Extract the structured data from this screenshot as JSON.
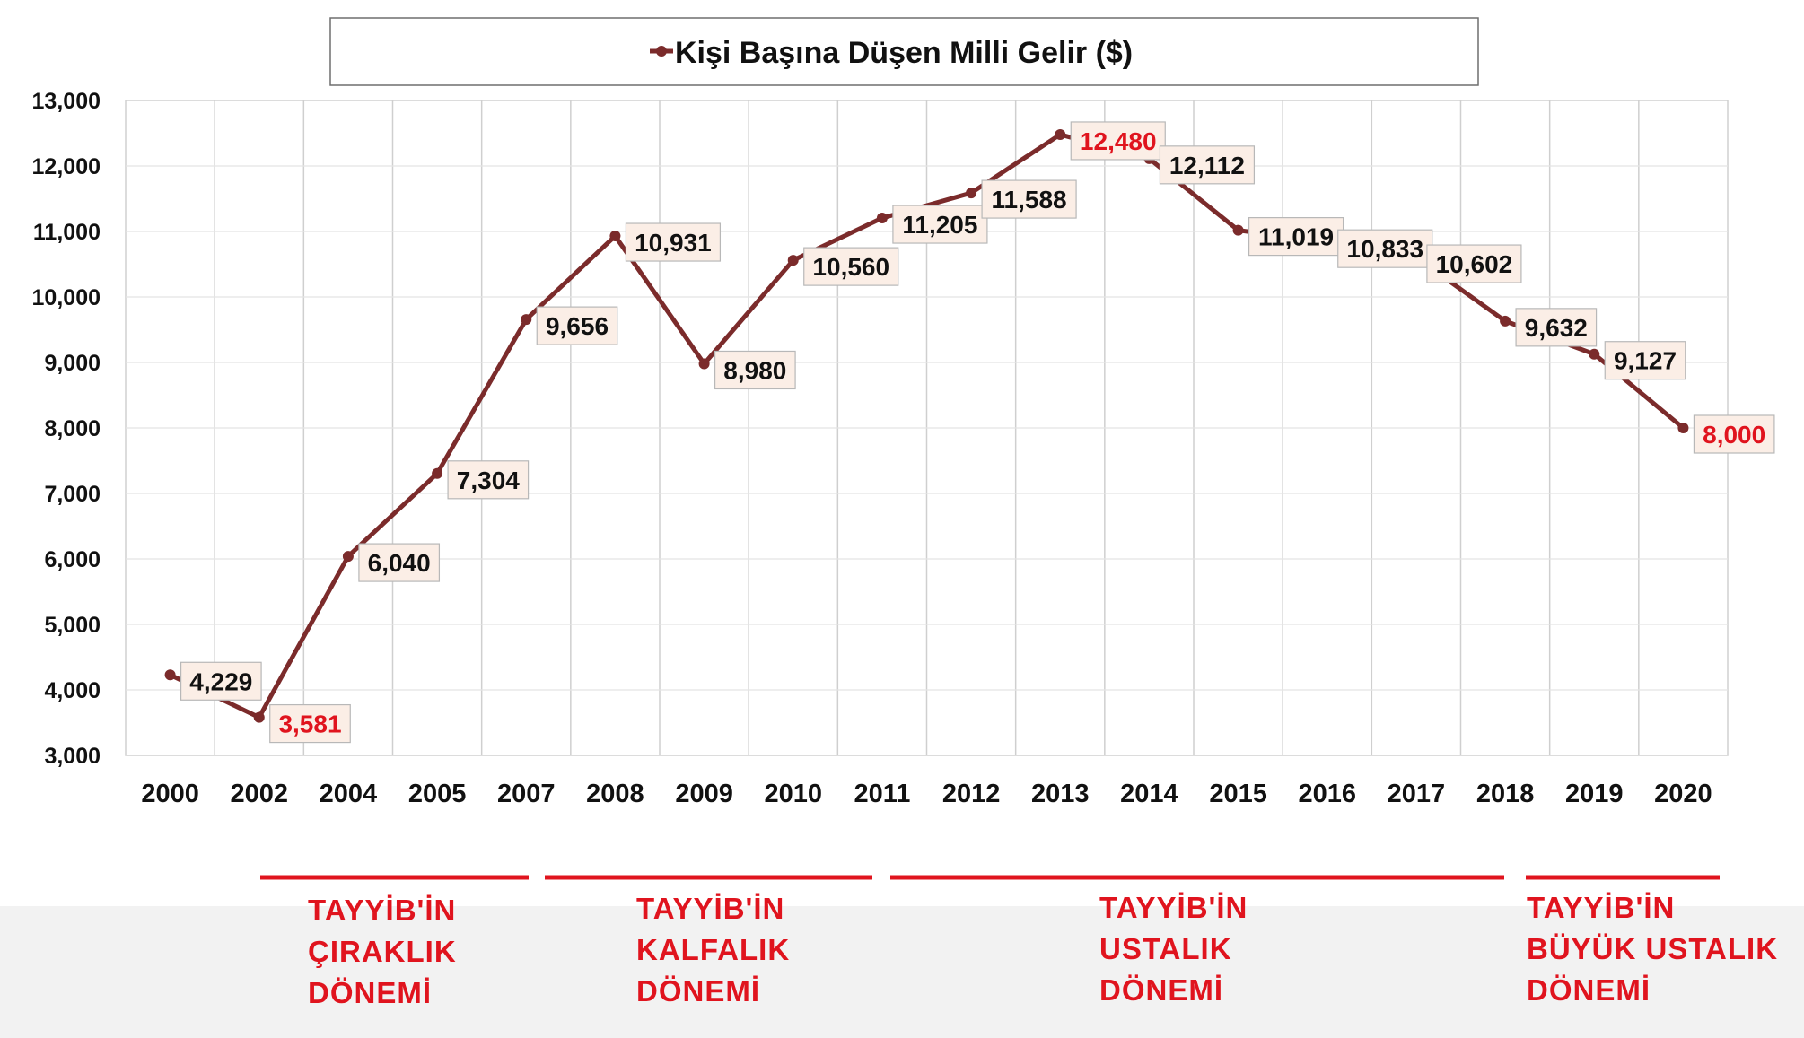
{
  "chart_data": {
    "type": "line",
    "title": "Kişi Başına Düşen Milli Gelir ($)",
    "categories": [
      "2000",
      "2002",
      "2004",
      "2005",
      "2007",
      "2008",
      "2009",
      "2010",
      "2011",
      "2012",
      "2013",
      "2014",
      "2015",
      "2016",
      "2017",
      "2018",
      "2019",
      "2020"
    ],
    "series": [
      {
        "name": "Kişi Başına Düşen Milli Gelir ($)",
        "values": [
          4229,
          3581,
          6040,
          7304,
          9656,
          10931,
          8980,
          10560,
          11205,
          11588,
          12480,
          12112,
          11019,
          10833,
          10602,
          9632,
          9127,
          8000
        ],
        "labels": [
          "4,229",
          "3,581",
          "6,040",
          "7,304",
          "9,656",
          "10,931",
          "8,980",
          "10,560",
          "11,205",
          "11,588",
          "12,480",
          "12,112",
          "11,019",
          "10,833",
          "10,602",
          "9,632",
          "9,127",
          "8,000"
        ],
        "color": "#7b2b2b"
      }
    ],
    "highlighted_indices": [
      1,
      10,
      17
    ],
    "highlight_color": "#e0141e",
    "ylim": [
      3000,
      13000
    ],
    "yticks": [
      "3,000",
      "4,000",
      "5,000",
      "6,000",
      "7,000",
      "8,000",
      "9,000",
      "10,000",
      "11,000",
      "12,000",
      "13,000"
    ],
    "xlabel": "",
    "ylabel": "",
    "grid": true,
    "legend_position": "top"
  },
  "periods": [
    {
      "lines": [
        "TAYYİB'İN",
        "ÇIRAKLIK",
        "DÖNEMİ"
      ]
    },
    {
      "lines": [
        "TAYYİB'İN",
        "KALFALIK",
        "DÖNEMİ"
      ]
    },
    {
      "lines": [
        "TAYYİB'İN",
        "USTALIK",
        "DÖNEMİ"
      ]
    },
    {
      "lines": [
        "TAYYİB'İN",
        "BÜYÜK USTALIK",
        "DÖNEMİ"
      ]
    }
  ],
  "colors": {
    "accent_red": "#e0141e",
    "line": "#7b2b2b",
    "label_bg": "#fbeee6"
  }
}
